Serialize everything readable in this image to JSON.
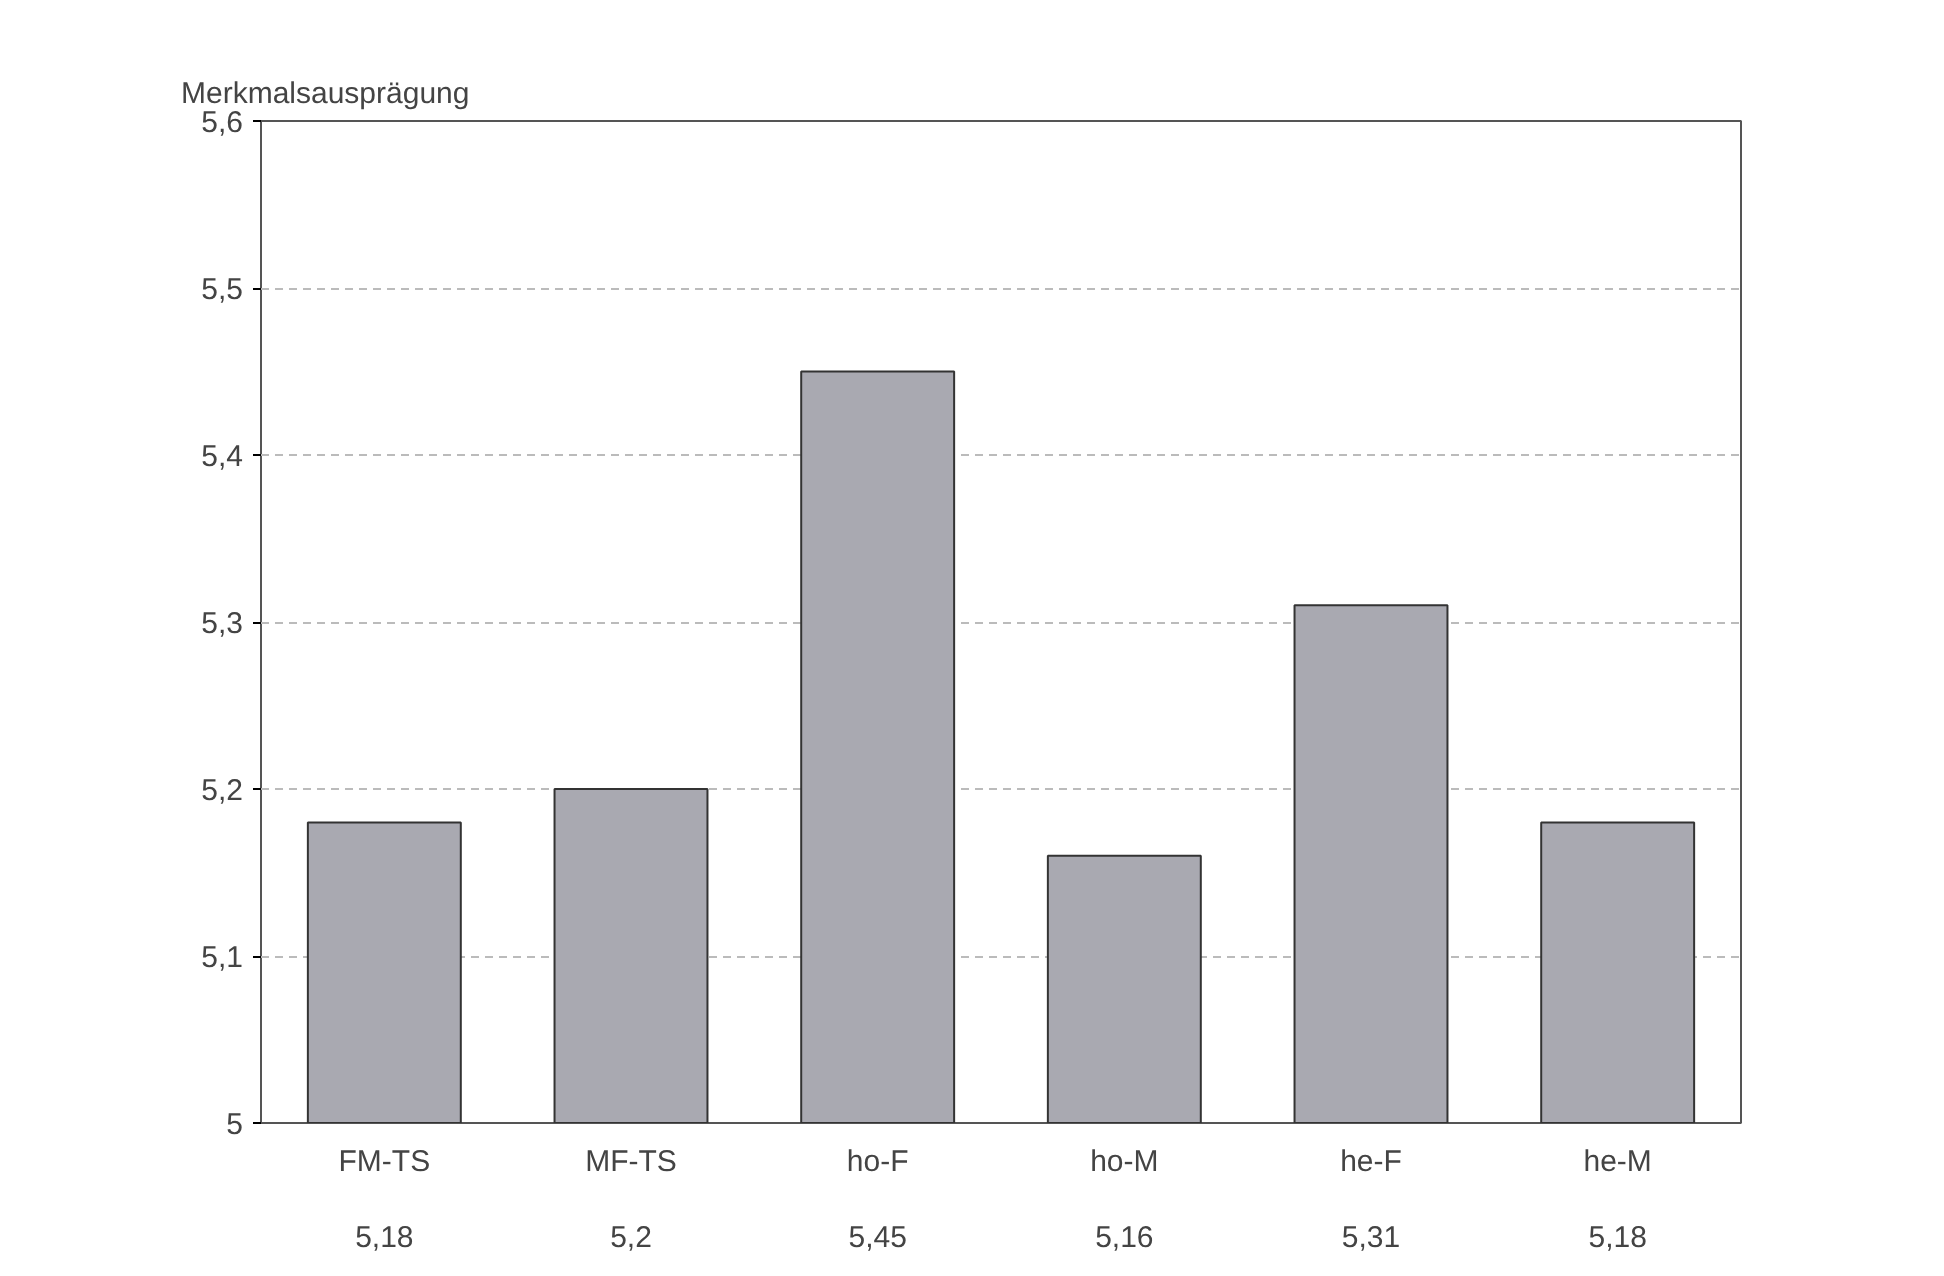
{
  "chart_data": {
    "type": "bar",
    "ylabel": "Merkmalsausprägung",
    "categories": [
      "FM-TS",
      "MF-TS",
      "ho-F",
      "ho-M",
      "he-F",
      "he-M"
    ],
    "values": [
      5.18,
      5.2,
      5.45,
      5.16,
      5.31,
      5.18
    ],
    "value_labels": [
      "5,18",
      "5,2",
      "5,45",
      "5,16",
      "5,31",
      "5,18"
    ],
    "color": "#a9a9b1",
    "ylim": [
      5,
      5.6
    ],
    "yticks": [
      5,
      {
        "value": 5.1,
        "label": "5,1"
      },
      {
        "value": 5.2,
        "label": "5,2"
      },
      {
        "value": 5.3,
        "label": "5,3"
      },
      {
        "value": 5.4,
        "label": "5,4"
      },
      {
        "value": 5.5,
        "label": "5,5"
      },
      {
        "value": 5.6,
        "label": "5,6"
      }
    ],
    "grid": "y"
  }
}
